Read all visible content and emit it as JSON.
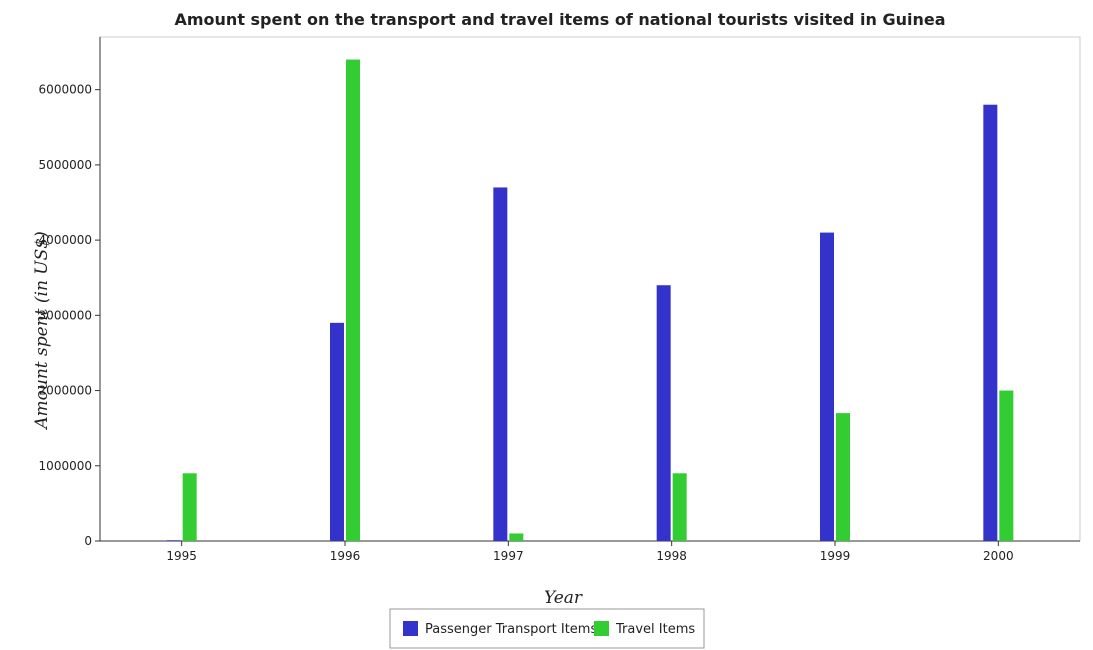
{
  "chart_data": {
    "type": "bar",
    "title": "Amount spent on the transport and travel items of national tourists visited in Guinea",
    "xlabel": "Year",
    "ylabel": "Amount spent (in US$)",
    "categories": [
      "1995",
      "1996",
      "1997",
      "1998",
      "1999",
      "2000"
    ],
    "series": [
      {
        "name": "Passenger Transport Items",
        "color": "#3333cc",
        "values": [
          10000,
          2900000,
          4700000,
          3400000,
          4100000,
          5800000
        ]
      },
      {
        "name": "Travel Items",
        "color": "#33cc33",
        "values": [
          900000,
          6400000,
          100000,
          900000,
          1700000,
          2000000
        ]
      }
    ],
    "ylim": [
      0,
      6700000
    ],
    "yticks": [
      0,
      1000000,
      2000000,
      3000000,
      4000000,
      5000000,
      6000000
    ],
    "ytick_labels": [
      "0",
      "1000000",
      "2000000",
      "3000000",
      "4000000",
      "5000000",
      "6000000"
    ],
    "grid": false,
    "legend_position": "bottom-center"
  }
}
